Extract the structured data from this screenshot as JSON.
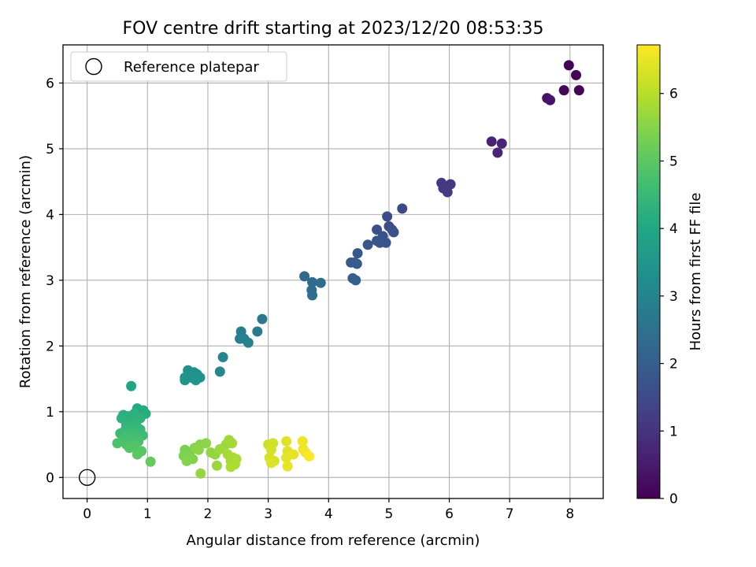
{
  "chart_data": {
    "type": "scatter",
    "title": "FOV centre drift starting at 2023/12/20 08:53:35",
    "xlabel": "Angular distance from reference (arcmin)",
    "ylabel": "Rotation from reference (arcmin)",
    "xlim": [
      -0.4,
      8.55
    ],
    "ylim": [
      -0.32,
      6.58
    ],
    "xticks": [
      "0",
      "1",
      "2",
      "3",
      "4",
      "5",
      "6",
      "7",
      "8"
    ],
    "yticks": [
      "0",
      "1",
      "2",
      "3",
      "4",
      "5",
      "6"
    ],
    "grid": true,
    "legend": {
      "placement": "top-left",
      "entries": [
        "Reference platepar"
      ]
    },
    "reference_point": {
      "x": 0,
      "y": 0
    },
    "colorbar": {
      "label": "Hours from first FF file",
      "colormap": "viridis",
      "range": [
        0,
        6.72
      ],
      "ticks": [
        "0",
        "1",
        "2",
        "3",
        "4",
        "5",
        "6"
      ]
    },
    "series": [
      {
        "points": [
          {
            "x": 7.98,
            "y": 6.27,
            "c": 0.05
          },
          {
            "x": 8.1,
            "y": 6.12,
            "c": 0.08
          },
          {
            "x": 7.9,
            "y": 5.89,
            "c": 0.12
          },
          {
            "x": 8.15,
            "y": 5.89,
            "c": 0.1
          },
          {
            "x": 7.62,
            "y": 5.77,
            "c": 0.35
          },
          {
            "x": 7.67,
            "y": 5.74,
            "c": 0.38
          },
          {
            "x": 6.7,
            "y": 5.11,
            "c": 0.65
          },
          {
            "x": 6.87,
            "y": 5.08,
            "c": 0.7
          },
          {
            "x": 6.8,
            "y": 4.94,
            "c": 0.72
          },
          {
            "x": 5.87,
            "y": 4.48,
            "c": 1.1
          },
          {
            "x": 6.02,
            "y": 4.46,
            "c": 1.12
          },
          {
            "x": 5.9,
            "y": 4.4,
            "c": 1.15
          },
          {
            "x": 5.97,
            "y": 4.34,
            "c": 1.18
          },
          {
            "x": 5.22,
            "y": 4.09,
            "c": 1.5
          },
          {
            "x": 4.97,
            "y": 3.97,
            "c": 1.55
          },
          {
            "x": 5.0,
            "y": 3.82,
            "c": 1.6
          },
          {
            "x": 4.8,
            "y": 3.77,
            "c": 1.63
          },
          {
            "x": 5.05,
            "y": 3.77,
            "c": 1.62
          },
          {
            "x": 4.9,
            "y": 3.67,
            "c": 1.66
          },
          {
            "x": 5.08,
            "y": 3.73,
            "c": 1.65
          },
          {
            "x": 4.8,
            "y": 3.6,
            "c": 1.7
          },
          {
            "x": 4.85,
            "y": 3.57,
            "c": 1.72
          },
          {
            "x": 4.95,
            "y": 3.57,
            "c": 1.74
          },
          {
            "x": 4.65,
            "y": 3.54,
            "c": 1.78
          },
          {
            "x": 4.48,
            "y": 3.41,
            "c": 1.85
          },
          {
            "x": 4.37,
            "y": 3.27,
            "c": 1.9
          },
          {
            "x": 4.43,
            "y": 3.27,
            "c": 1.92
          },
          {
            "x": 4.47,
            "y": 3.25,
            "c": 1.95
          },
          {
            "x": 4.4,
            "y": 3.03,
            "c": 2.0
          },
          {
            "x": 4.45,
            "y": 3.0,
            "c": 2.02
          },
          {
            "x": 3.6,
            "y": 3.06,
            "c": 2.3
          },
          {
            "x": 3.73,
            "y": 2.97,
            "c": 2.35
          },
          {
            "x": 3.87,
            "y": 2.96,
            "c": 2.38
          },
          {
            "x": 3.72,
            "y": 2.85,
            "c": 2.4
          },
          {
            "x": 3.73,
            "y": 2.77,
            "c": 2.42
          },
          {
            "x": 2.9,
            "y": 2.41,
            "c": 2.7
          },
          {
            "x": 2.82,
            "y": 2.22,
            "c": 2.75
          },
          {
            "x": 2.55,
            "y": 2.22,
            "c": 2.85
          },
          {
            "x": 2.53,
            "y": 2.11,
            "c": 2.88
          },
          {
            "x": 2.6,
            "y": 2.11,
            "c": 2.9
          },
          {
            "x": 2.67,
            "y": 2.05,
            "c": 2.92
          },
          {
            "x": 2.25,
            "y": 1.83,
            "c": 3.05
          },
          {
            "x": 2.2,
            "y": 1.61,
            "c": 3.1
          },
          {
            "x": 1.67,
            "y": 1.63,
            "c": 3.3
          },
          {
            "x": 1.77,
            "y": 1.6,
            "c": 3.32
          },
          {
            "x": 1.82,
            "y": 1.57,
            "c": 3.35
          },
          {
            "x": 1.62,
            "y": 1.52,
            "c": 3.38
          },
          {
            "x": 1.72,
            "y": 1.52,
            "c": 3.4
          },
          {
            "x": 1.87,
            "y": 1.52,
            "c": 3.42
          },
          {
            "x": 1.8,
            "y": 1.48,
            "c": 3.45
          },
          {
            "x": 1.62,
            "y": 1.48,
            "c": 3.47
          },
          {
            "x": 0.73,
            "y": 1.39,
            "c": 3.95
          },
          {
            "x": 0.83,
            "y": 1.05,
            "c": 4.05
          },
          {
            "x": 0.93,
            "y": 1.02,
            "c": 4.1
          },
          {
            "x": 0.97,
            "y": 0.97,
            "c": 4.15
          },
          {
            "x": 0.6,
            "y": 0.95,
            "c": 4.2
          },
          {
            "x": 0.68,
            "y": 0.93,
            "c": 4.22
          },
          {
            "x": 0.78,
            "y": 0.97,
            "c": 4.25
          },
          {
            "x": 0.57,
            "y": 0.9,
            "c": 4.28
          },
          {
            "x": 0.88,
            "y": 0.9,
            "c": 4.3
          },
          {
            "x": 0.75,
            "y": 0.83,
            "c": 4.33
          },
          {
            "x": 0.65,
            "y": 0.8,
            "c": 4.38
          },
          {
            "x": 0.82,
            "y": 0.78,
            "c": 4.4
          },
          {
            "x": 0.73,
            "y": 0.73,
            "c": 4.45
          },
          {
            "x": 0.63,
            "y": 0.72,
            "c": 4.5
          },
          {
            "x": 0.88,
            "y": 0.73,
            "c": 4.48
          },
          {
            "x": 0.55,
            "y": 0.67,
            "c": 4.55
          },
          {
            "x": 0.77,
            "y": 0.68,
            "c": 4.58
          },
          {
            "x": 0.68,
            "y": 0.64,
            "c": 4.62
          },
          {
            "x": 0.92,
            "y": 0.64,
            "c": 4.6
          },
          {
            "x": 0.8,
            "y": 0.62,
            "c": 4.65
          },
          {
            "x": 0.62,
            "y": 0.6,
            "c": 4.7
          },
          {
            "x": 0.72,
            "y": 0.57,
            "c": 4.72
          },
          {
            "x": 0.85,
            "y": 0.55,
            "c": 4.75
          },
          {
            "x": 0.5,
            "y": 0.52,
            "c": 4.8
          },
          {
            "x": 0.65,
            "y": 0.5,
            "c": 4.82
          },
          {
            "x": 0.78,
            "y": 0.48,
            "c": 4.85
          },
          {
            "x": 0.7,
            "y": 0.45,
            "c": 4.88
          },
          {
            "x": 0.9,
            "y": 0.4,
            "c": 4.95
          },
          {
            "x": 0.83,
            "y": 0.35,
            "c": 5.0
          },
          {
            "x": 1.05,
            "y": 0.24,
            "c": 5.1
          },
          {
            "x": 1.62,
            "y": 0.42,
            "c": 5.35
          },
          {
            "x": 1.7,
            "y": 0.38,
            "c": 5.38
          },
          {
            "x": 1.6,
            "y": 0.33,
            "c": 5.4
          },
          {
            "x": 1.68,
            "y": 0.3,
            "c": 5.42
          },
          {
            "x": 1.75,
            "y": 0.28,
            "c": 5.45
          },
          {
            "x": 1.65,
            "y": 0.25,
            "c": 5.47
          },
          {
            "x": 1.78,
            "y": 0.45,
            "c": 5.5
          },
          {
            "x": 1.87,
            "y": 0.5,
            "c": 5.52
          },
          {
            "x": 1.97,
            "y": 0.52,
            "c": 5.55
          },
          {
            "x": 1.85,
            "y": 0.42,
            "c": 5.57
          },
          {
            "x": 2.05,
            "y": 0.38,
            "c": 5.6
          },
          {
            "x": 2.12,
            "y": 0.35,
            "c": 5.62
          },
          {
            "x": 1.88,
            "y": 0.06,
            "c": 5.65
          },
          {
            "x": 2.15,
            "y": 0.18,
            "c": 5.68
          },
          {
            "x": 2.2,
            "y": 0.43,
            "c": 5.7
          },
          {
            "x": 2.3,
            "y": 0.5,
            "c": 5.72
          },
          {
            "x": 2.35,
            "y": 0.57,
            "c": 5.75
          },
          {
            "x": 2.4,
            "y": 0.52,
            "c": 5.78
          },
          {
            "x": 2.33,
            "y": 0.35,
            "c": 5.8
          },
          {
            "x": 2.42,
            "y": 0.3,
            "c": 5.82
          },
          {
            "x": 2.38,
            "y": 0.25,
            "c": 5.84
          },
          {
            "x": 2.47,
            "y": 0.28,
            "c": 5.86
          },
          {
            "x": 2.45,
            "y": 0.2,
            "c": 5.88
          },
          {
            "x": 2.38,
            "y": 0.16,
            "c": 5.9
          },
          {
            "x": 3.0,
            "y": 0.5,
            "c": 6.2
          },
          {
            "x": 3.08,
            "y": 0.52,
            "c": 6.25
          },
          {
            "x": 3.05,
            "y": 0.42,
            "c": 6.28
          },
          {
            "x": 3.02,
            "y": 0.3,
            "c": 6.3
          },
          {
            "x": 3.1,
            "y": 0.25,
            "c": 6.32
          },
          {
            "x": 3.05,
            "y": 0.22,
            "c": 6.35
          },
          {
            "x": 3.3,
            "y": 0.55,
            "c": 6.4
          },
          {
            "x": 3.32,
            "y": 0.4,
            "c": 6.42
          },
          {
            "x": 3.3,
            "y": 0.3,
            "c": 6.45
          },
          {
            "x": 3.32,
            "y": 0.17,
            "c": 6.47
          },
          {
            "x": 3.42,
            "y": 0.35,
            "c": 6.5
          },
          {
            "x": 3.57,
            "y": 0.55,
            "c": 6.55
          },
          {
            "x": 3.58,
            "y": 0.43,
            "c": 6.58
          },
          {
            "x": 3.62,
            "y": 0.38,
            "c": 6.62
          },
          {
            "x": 3.68,
            "y": 0.32,
            "c": 6.7
          }
        ]
      }
    ]
  }
}
